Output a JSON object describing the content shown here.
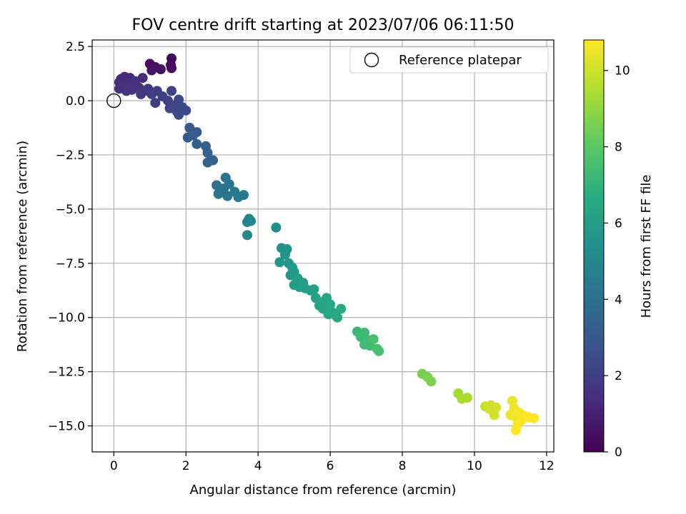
{
  "chart_data": {
    "type": "scatter",
    "title": "FOV centre drift starting at 2023/07/06 06:11:50",
    "xlabel": "Angular distance from reference (arcmin)",
    "ylabel": "Rotation from reference (arcmin)",
    "xlim": [
      -0.6,
      12.2
    ],
    "ylim": [
      -16.2,
      2.8
    ],
    "xticks": [
      0,
      2,
      4,
      6,
      8,
      10,
      12
    ],
    "xtick_labels": [
      "0",
      "2",
      "4",
      "6",
      "8",
      "10",
      "12"
    ],
    "yticks": [
      2.5,
      0.0,
      -2.5,
      -5.0,
      -7.5,
      -10.0,
      -12.5,
      -15.0
    ],
    "ytick_labels": [
      "2.5",
      "0.0",
      "−2.5",
      "−5.0",
      "−7.5",
      "−10.0",
      "−12.5",
      "−15.0"
    ],
    "grid": true,
    "legend": {
      "placement": "upper right",
      "entries": [
        "Reference platepar"
      ]
    },
    "colorbar": {
      "label": "Hours from first FF file",
      "range": [
        0,
        10.8
      ],
      "ticks": [
        0,
        2,
        4,
        6,
        8,
        10
      ],
      "tick_labels": [
        "0",
        "2",
        "4",
        "6",
        "8",
        "10"
      ],
      "colormap": "viridis"
    },
    "reference_point": {
      "x": 0,
      "y": 0,
      "label": "Reference platepar"
    },
    "points": [
      {
        "x": 0.2,
        "y": 1.0,
        "t": 1.2
      },
      {
        "x": 0.3,
        "y": 1.1,
        "t": 1.3
      },
      {
        "x": 0.45,
        "y": 1.05,
        "t": 1.3
      },
      {
        "x": 0.15,
        "y": 0.85,
        "t": 1.4
      },
      {
        "x": 0.25,
        "y": 0.75,
        "t": 1.5
      },
      {
        "x": 0.4,
        "y": 0.8,
        "t": 1.5
      },
      {
        "x": 0.55,
        "y": 0.7,
        "t": 1.6
      },
      {
        "x": 0.3,
        "y": 0.55,
        "t": 1.6
      },
      {
        "x": 0.5,
        "y": 0.5,
        "t": 1.7
      },
      {
        "x": 0.7,
        "y": 0.6,
        "t": 1.7
      },
      {
        "x": 0.85,
        "y": 0.45,
        "t": 1.8
      },
      {
        "x": 0.75,
        "y": 0.3,
        "t": 1.8
      },
      {
        "x": 0.95,
        "y": 0.55,
        "t": 1.8
      },
      {
        "x": 1.05,
        "y": 0.3,
        "t": 1.9
      },
      {
        "x": 1.2,
        "y": 0.45,
        "t": 1.9
      },
      {
        "x": 0.6,
        "y": 0.9,
        "t": 1.5
      },
      {
        "x": 0.8,
        "y": 1.05,
        "t": 1.4
      },
      {
        "x": 0.35,
        "y": 0.45,
        "t": 1.6
      },
      {
        "x": 0.15,
        "y": 0.55,
        "t": 1.5
      },
      {
        "x": 1.15,
        "y": -0.1,
        "t": 2.0
      },
      {
        "x": 1.35,
        "y": 0.2,
        "t": 2.0
      },
      {
        "x": 1.5,
        "y": 0.0,
        "t": 2.1
      },
      {
        "x": 1.6,
        "y": 0.45,
        "t": 2.1
      },
      {
        "x": 1.55,
        "y": -0.35,
        "t": 2.2
      },
      {
        "x": 1.7,
        "y": -0.2,
        "t": 2.2
      },
      {
        "x": 1.8,
        "y": 0.05,
        "t": 2.3
      },
      {
        "x": 1.75,
        "y": -0.5,
        "t": 2.3
      },
      {
        "x": 1.9,
        "y": -0.3,
        "t": 2.4
      },
      {
        "x": 2.0,
        "y": -0.45,
        "t": 2.4
      },
      {
        "x": 1.8,
        "y": -0.65,
        "t": 2.4
      },
      {
        "x": 1.65,
        "y": -0.3,
        "t": 2.3
      },
      {
        "x": 1.0,
        "y": 1.7,
        "t": 0.4
      },
      {
        "x": 1.15,
        "y": 1.55,
        "t": 0.5
      },
      {
        "x": 1.3,
        "y": 1.45,
        "t": 0.5
      },
      {
        "x": 1.05,
        "y": 1.4,
        "t": 0.6
      },
      {
        "x": 1.6,
        "y": 1.95,
        "t": 0.2
      },
      {
        "x": 1.58,
        "y": 1.65,
        "t": 0.3
      },
      {
        "x": 1.6,
        "y": 1.5,
        "t": 0.3
      },
      {
        "x": 2.1,
        "y": -1.25,
        "t": 3.0
      },
      {
        "x": 2.3,
        "y": -1.45,
        "t": 3.1
      },
      {
        "x": 2.05,
        "y": -1.7,
        "t": 3.1
      },
      {
        "x": 2.2,
        "y": -1.6,
        "t": 3.2
      },
      {
        "x": 2.3,
        "y": -2.0,
        "t": 3.2
      },
      {
        "x": 2.55,
        "y": -2.1,
        "t": 3.3
      },
      {
        "x": 2.6,
        "y": -2.4,
        "t": 3.4
      },
      {
        "x": 2.75,
        "y": -2.75,
        "t": 3.4
      },
      {
        "x": 2.6,
        "y": -2.85,
        "t": 3.5
      },
      {
        "x": 2.85,
        "y": -3.9,
        "t": 4.0
      },
      {
        "x": 3.1,
        "y": -3.55,
        "t": 4.1
      },
      {
        "x": 3.05,
        "y": -4.05,
        "t": 4.1
      },
      {
        "x": 3.2,
        "y": -3.85,
        "t": 4.2
      },
      {
        "x": 3.35,
        "y": -4.2,
        "t": 4.3
      },
      {
        "x": 2.9,
        "y": -4.3,
        "t": 4.1
      },
      {
        "x": 3.15,
        "y": -4.4,
        "t": 4.2
      },
      {
        "x": 3.45,
        "y": -4.45,
        "t": 4.4
      },
      {
        "x": 3.6,
        "y": -4.35,
        "t": 4.4
      },
      {
        "x": 3.75,
        "y": -5.45,
        "t": 4.8
      },
      {
        "x": 3.7,
        "y": -5.6,
        "t": 4.8
      },
      {
        "x": 3.8,
        "y": -5.55,
        "t": 4.9
      },
      {
        "x": 3.7,
        "y": -6.2,
        "t": 5.0
      },
      {
        "x": 4.5,
        "y": -5.85,
        "t": 5.3
      },
      {
        "x": 4.65,
        "y": -6.8,
        "t": 5.5
      },
      {
        "x": 4.8,
        "y": -6.85,
        "t": 5.5
      },
      {
        "x": 4.6,
        "y": -7.45,
        "t": 5.6
      },
      {
        "x": 4.75,
        "y": -7.1,
        "t": 5.6
      },
      {
        "x": 4.85,
        "y": -7.5,
        "t": 5.7
      },
      {
        "x": 4.95,
        "y": -7.7,
        "t": 5.7
      },
      {
        "x": 5.0,
        "y": -7.9,
        "t": 5.8
      },
      {
        "x": 4.9,
        "y": -8.05,
        "t": 5.8
      },
      {
        "x": 5.1,
        "y": -8.2,
        "t": 5.9
      },
      {
        "x": 5.25,
        "y": -8.4,
        "t": 5.9
      },
      {
        "x": 5.0,
        "y": -8.5,
        "t": 5.9
      },
      {
        "x": 5.15,
        "y": -8.6,
        "t": 6.0
      },
      {
        "x": 5.3,
        "y": -8.65,
        "t": 6.0
      },
      {
        "x": 5.45,
        "y": -8.75,
        "t": 6.1
      },
      {
        "x": 5.55,
        "y": -8.7,
        "t": 6.1
      },
      {
        "x": 5.6,
        "y": -9.1,
        "t": 6.2
      },
      {
        "x": 5.75,
        "y": -9.3,
        "t": 6.3
      },
      {
        "x": 5.8,
        "y": -9.6,
        "t": 6.3
      },
      {
        "x": 5.9,
        "y": -9.1,
        "t": 6.3
      },
      {
        "x": 5.95,
        "y": -9.85,
        "t": 6.4
      },
      {
        "x": 6.05,
        "y": -9.75,
        "t": 6.4
      },
      {
        "x": 6.15,
        "y": -9.9,
        "t": 6.5
      },
      {
        "x": 6.2,
        "y": -10.0,
        "t": 6.5
      },
      {
        "x": 6.3,
        "y": -9.6,
        "t": 6.5
      },
      {
        "x": 6.0,
        "y": -9.4,
        "t": 6.4
      },
      {
        "x": 5.7,
        "y": -9.45,
        "t": 6.3
      },
      {
        "x": 6.75,
        "y": -10.65,
        "t": 7.2
      },
      {
        "x": 6.85,
        "y": -10.9,
        "t": 7.3
      },
      {
        "x": 6.95,
        "y": -10.7,
        "t": 7.3
      },
      {
        "x": 7.05,
        "y": -11.05,
        "t": 7.4
      },
      {
        "x": 6.95,
        "y": -11.25,
        "t": 7.4
      },
      {
        "x": 7.1,
        "y": -11.3,
        "t": 7.4
      },
      {
        "x": 7.2,
        "y": -11.0,
        "t": 7.5
      },
      {
        "x": 7.3,
        "y": -11.45,
        "t": 7.5
      },
      {
        "x": 7.35,
        "y": -11.55,
        "t": 7.6
      },
      {
        "x": 8.55,
        "y": -12.6,
        "t": 8.5
      },
      {
        "x": 8.7,
        "y": -12.75,
        "t": 8.6
      },
      {
        "x": 8.8,
        "y": -12.95,
        "t": 8.6
      },
      {
        "x": 9.55,
        "y": -13.5,
        "t": 9.3
      },
      {
        "x": 9.65,
        "y": -13.75,
        "t": 9.4
      },
      {
        "x": 9.8,
        "y": -13.7,
        "t": 9.4
      },
      {
        "x": 10.3,
        "y": -14.1,
        "t": 9.9
      },
      {
        "x": 10.45,
        "y": -14.05,
        "t": 10.0
      },
      {
        "x": 10.5,
        "y": -14.3,
        "t": 10.0
      },
      {
        "x": 10.6,
        "y": -14.15,
        "t": 10.1
      },
      {
        "x": 10.55,
        "y": -14.5,
        "t": 10.1
      },
      {
        "x": 10.4,
        "y": -14.2,
        "t": 10.0
      },
      {
        "x": 11.05,
        "y": -13.85,
        "t": 10.5
      },
      {
        "x": 11.0,
        "y": -14.5,
        "t": 10.5
      },
      {
        "x": 11.1,
        "y": -14.2,
        "t": 10.6
      },
      {
        "x": 11.15,
        "y": -14.6,
        "t": 10.6
      },
      {
        "x": 11.25,
        "y": -14.4,
        "t": 10.7
      },
      {
        "x": 11.3,
        "y": -14.75,
        "t": 10.7
      },
      {
        "x": 11.4,
        "y": -14.55,
        "t": 10.7
      },
      {
        "x": 11.5,
        "y": -14.6,
        "t": 10.8
      },
      {
        "x": 11.65,
        "y": -14.65,
        "t": 10.8
      },
      {
        "x": 11.15,
        "y": -15.2,
        "t": 10.8
      },
      {
        "x": 11.2,
        "y": -14.9,
        "t": 10.7
      }
    ]
  }
}
